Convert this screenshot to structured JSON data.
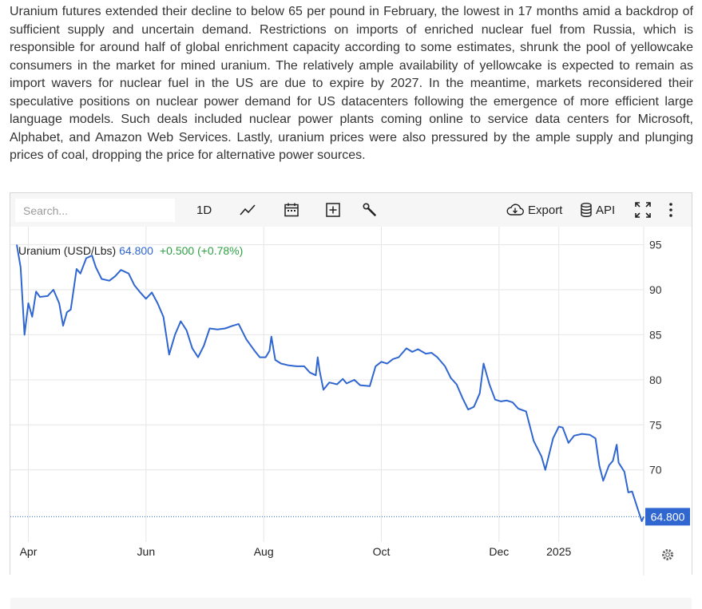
{
  "article": {
    "text": "Uranium futures extended their decline to below 65 per pound in February, the lowest in 17 months amid a backdrop of sufficient supply and uncertain demand. Restrictions on imports of enriched nuclear fuel from Russia, which is responsible for around half of global enrichment capacity according to some estimates, shrunk the pool of yellowcake consumers in the market for mined uranium. The relatively ample availability of yellowcake is expected to remain as import wavers for nuclear fuel in the US are due to expire by 2027. In the meantime, markets reconsidered their speculative positions on nuclear power demand for US datacenters following the emergence of more efficient large language models. Such deals included nuclear power plants coming online to service data centers for Microsoft, Alphabet, and Amazon Web Services. Lastly, uranium prices were also pressured by the ample supply and plunging prices of coal, dropping the price for alternative power sources."
  },
  "toolbar": {
    "search_placeholder": "Search...",
    "interval_label": "1D",
    "export_label": "Export",
    "api_label": "API",
    "icons": [
      "line-chart-icon",
      "calendar-icon",
      "add-box-icon",
      "wrench-icon",
      "cloud-download-icon",
      "database-icon",
      "fullscreen-icon",
      "more-vertical-icon",
      "gear-icon"
    ]
  },
  "legend": {
    "name": "Uranium (USD/Lbs)",
    "last_value": "64.800",
    "change": "+0.500 (+0.78%)"
  },
  "colors": {
    "line": "#2f66d0",
    "change_positive": "#2ea043",
    "price_tag": "#2f66d0",
    "grid": "#e6e6e6"
  },
  "chart_data": {
    "type": "line",
    "title": "",
    "xlabel": "",
    "ylabel": "",
    "x_range": [
      "2024-03-26",
      "2025-02-14"
    ],
    "ylim": [
      62,
      97
    ],
    "y_ticks": [
      95,
      90,
      85,
      80,
      75,
      70
    ],
    "x_ticks": [
      {
        "label": "Apr",
        "date": "2024-04-01"
      },
      {
        "label": "Jun",
        "date": "2024-06-01"
      },
      {
        "label": "Aug",
        "date": "2024-08-01"
      },
      {
        "label": "Oct",
        "date": "2024-10-01"
      },
      {
        "label": "Dec",
        "date": "2024-12-01"
      },
      {
        "label": "2025",
        "date": "2025-01-01"
      }
    ],
    "last_price_label": "64.800",
    "grid": true,
    "legend_position": "top-left",
    "series": [
      {
        "name": "Uranium (USD/Lbs)",
        "points": [
          [
            "2024-03-26",
            95.0
          ],
          [
            "2024-03-28",
            92.5
          ],
          [
            "2024-03-30",
            85.0
          ],
          [
            "2024-04-01",
            88.5
          ],
          [
            "2024-04-03",
            87.0
          ],
          [
            "2024-04-05",
            89.8
          ],
          [
            "2024-04-07",
            89.2
          ],
          [
            "2024-04-11",
            89.3
          ],
          [
            "2024-04-14",
            90.0
          ],
          [
            "2024-04-17",
            88.5
          ],
          [
            "2024-04-19",
            86.0
          ],
          [
            "2024-04-21",
            87.5
          ],
          [
            "2024-04-23",
            87.8
          ],
          [
            "2024-04-26",
            92.3
          ],
          [
            "2024-04-28",
            91.8
          ],
          [
            "2024-05-01",
            93.5
          ],
          [
            "2024-05-04",
            93.8
          ],
          [
            "2024-05-06",
            92.5
          ],
          [
            "2024-05-09",
            91.2
          ],
          [
            "2024-05-13",
            91.0
          ],
          [
            "2024-05-16",
            91.5
          ],
          [
            "2024-05-19",
            92.2
          ],
          [
            "2024-05-23",
            91.8
          ],
          [
            "2024-05-26",
            90.5
          ],
          [
            "2024-05-29",
            89.7
          ],
          [
            "2024-06-01",
            89.0
          ],
          [
            "2024-06-04",
            89.7
          ],
          [
            "2024-06-07",
            88.5
          ],
          [
            "2024-06-10",
            87.0
          ],
          [
            "2024-06-13",
            82.8
          ],
          [
            "2024-06-16",
            85.0
          ],
          [
            "2024-06-19",
            86.5
          ],
          [
            "2024-06-22",
            85.5
          ],
          [
            "2024-06-25",
            83.5
          ],
          [
            "2024-06-28",
            82.5
          ],
          [
            "2024-07-01",
            83.8
          ],
          [
            "2024-07-04",
            85.7
          ],
          [
            "2024-07-08",
            85.6
          ],
          [
            "2024-07-12",
            85.7
          ],
          [
            "2024-07-16",
            86.0
          ],
          [
            "2024-07-19",
            86.2
          ],
          [
            "2024-07-23",
            84.5
          ],
          [
            "2024-07-27",
            83.3
          ],
          [
            "2024-07-30",
            82.5
          ],
          [
            "2024-08-02",
            82.5
          ],
          [
            "2024-08-04",
            83.2
          ],
          [
            "2024-08-05",
            84.8
          ],
          [
            "2024-08-07",
            82.2
          ],
          [
            "2024-08-10",
            81.8
          ],
          [
            "2024-08-14",
            81.6
          ],
          [
            "2024-08-18",
            81.5
          ],
          [
            "2024-08-22",
            81.5
          ],
          [
            "2024-08-25",
            80.8
          ],
          [
            "2024-08-28",
            80.5
          ],
          [
            "2024-08-29",
            82.5
          ],
          [
            "2024-08-30",
            81.0
          ],
          [
            "2024-09-01",
            78.9
          ],
          [
            "2024-09-04",
            79.7
          ],
          [
            "2024-09-08",
            79.5
          ],
          [
            "2024-09-11",
            80.1
          ],
          [
            "2024-09-13",
            79.6
          ],
          [
            "2024-09-17",
            80.0
          ],
          [
            "2024-09-20",
            79.4
          ],
          [
            "2024-09-25",
            79.3
          ],
          [
            "2024-09-28",
            81.5
          ],
          [
            "2024-10-01",
            82.0
          ],
          [
            "2024-10-04",
            81.8
          ],
          [
            "2024-10-07",
            82.3
          ],
          [
            "2024-10-10",
            82.5
          ],
          [
            "2024-10-14",
            83.5
          ],
          [
            "2024-10-17",
            83.1
          ],
          [
            "2024-10-20",
            83.4
          ],
          [
            "2024-10-24",
            82.9
          ],
          [
            "2024-10-27",
            83.0
          ],
          [
            "2024-10-30",
            82.5
          ],
          [
            "2024-11-03",
            81.5
          ],
          [
            "2024-11-06",
            80.2
          ],
          [
            "2024-11-09",
            79.5
          ],
          [
            "2024-11-12",
            78.0
          ],
          [
            "2024-11-15",
            76.7
          ],
          [
            "2024-11-18",
            77.0
          ],
          [
            "2024-11-21",
            78.5
          ],
          [
            "2024-11-23",
            81.8
          ],
          [
            "2024-11-26",
            79.5
          ],
          [
            "2024-11-29",
            77.8
          ],
          [
            "2024-12-02",
            77.6
          ],
          [
            "2024-12-05",
            77.7
          ],
          [
            "2024-12-08",
            77.5
          ],
          [
            "2024-12-11",
            76.8
          ],
          [
            "2024-12-15",
            76.5
          ],
          [
            "2024-12-19",
            73.2
          ],
          [
            "2024-12-23",
            71.5
          ],
          [
            "2024-12-25",
            70.0
          ],
          [
            "2024-12-29",
            73.5
          ],
          [
            "2025-01-01",
            74.8
          ],
          [
            "2025-01-03",
            74.7
          ],
          [
            "2025-01-06",
            73.0
          ],
          [
            "2025-01-09",
            73.8
          ],
          [
            "2025-01-13",
            74.0
          ],
          [
            "2025-01-17",
            73.9
          ],
          [
            "2025-01-20",
            73.5
          ],
          [
            "2025-01-22",
            70.5
          ],
          [
            "2025-01-24",
            68.8
          ],
          [
            "2025-01-27",
            70.5
          ],
          [
            "2025-01-29",
            71.0
          ],
          [
            "2025-01-31",
            72.8
          ],
          [
            "2025-02-01",
            70.8
          ],
          [
            "2025-02-04",
            69.8
          ],
          [
            "2025-02-06",
            67.5
          ],
          [
            "2025-02-08",
            67.6
          ],
          [
            "2025-02-11",
            65.6
          ],
          [
            "2025-02-13",
            64.3
          ],
          [
            "2025-02-14",
            64.8
          ]
        ]
      }
    ]
  }
}
